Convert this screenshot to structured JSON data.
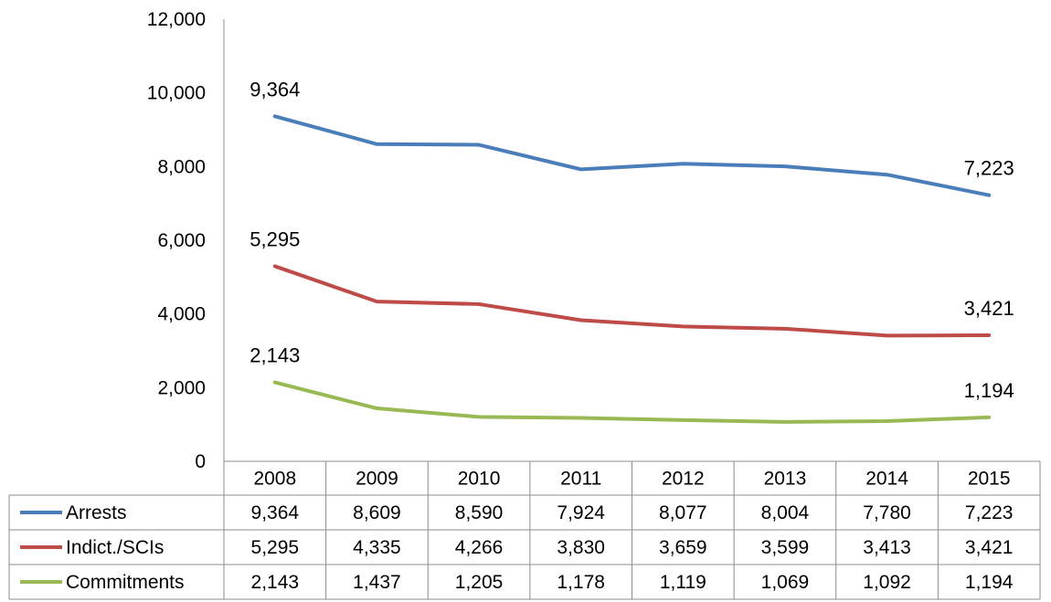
{
  "chart_data": {
    "type": "line",
    "title": "",
    "xlabel": "",
    "ylabel": "",
    "ylim": [
      0,
      12000
    ],
    "yticks": [
      0,
      2000,
      4000,
      6000,
      8000,
      10000,
      12000
    ],
    "ytick_labels": [
      "0",
      "2,000",
      "4,000",
      "6,000",
      "8,000",
      "10,000",
      "12,000"
    ],
    "categories": [
      "2008",
      "2009",
      "2010",
      "2011",
      "2012",
      "2013",
      "2014",
      "2015"
    ],
    "grid": false,
    "legend": "data-table-left",
    "series": [
      {
        "name": "Arrests",
        "color": "#4a7ebb",
        "values": [
          9364,
          8609,
          8590,
          7924,
          8077,
          8004,
          7780,
          7223
        ],
        "labels": [
          "9,364",
          "8,609",
          "8,590",
          "7,924",
          "8,077",
          "8,004",
          "7,780",
          "7,223"
        ]
      },
      {
        "name": "Indict./SCIs",
        "color": "#be4b48",
        "values": [
          5295,
          4335,
          4266,
          3830,
          3659,
          3599,
          3413,
          3421
        ],
        "labels": [
          "5,295",
          "4,335",
          "4,266",
          "3,830",
          "3,659",
          "3,599",
          "3,413",
          "3,421"
        ]
      },
      {
        "name": "Commitments",
        "color": "#98b954",
        "values": [
          2143,
          1437,
          1205,
          1178,
          1119,
          1069,
          1092,
          1194
        ],
        "labels": [
          "2,143",
          "1,437",
          "1,205",
          "1,178",
          "1,119",
          "1,069",
          "1,092",
          "1,194"
        ]
      }
    ]
  }
}
